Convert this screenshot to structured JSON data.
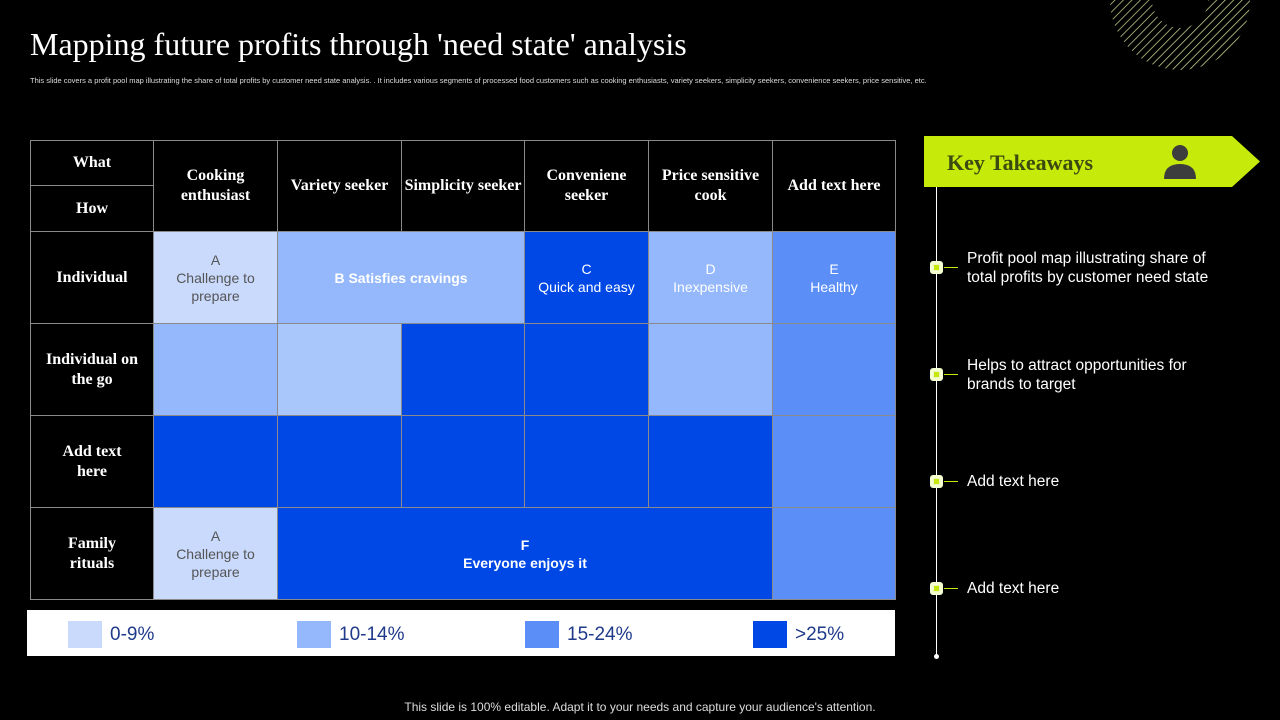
{
  "title": "Mapping future profits through 'need state' analysis",
  "subtitle": "This slide covers a profit pool map illustrating the share of total profits by customer need state analysis. . It includes various segments of processed food customers such as cooking enthusiasts, variety seekers, simplicity seekers, convenience seekers, price sensitive, etc.",
  "table": {
    "corner_what": "What",
    "corner_how": "How",
    "columns": [
      "Cooking enthusiast",
      "Variety seeker",
      "Simplicity seeker",
      "Conveniene seeker",
      "Price sensitive cook",
      "Add text here"
    ],
    "rows": [
      "Individual",
      "Individual on the go",
      "Add text here",
      "Family rituals"
    ],
    "cells": {
      "a1": {
        "letter": "A",
        "text": "Challenge to prepare"
      },
      "b": {
        "text": "B Satisfies cravings"
      },
      "c": {
        "letter": "C",
        "text": "Quick and easy"
      },
      "d": {
        "letter": "D",
        "text": "Inexpensive"
      },
      "e": {
        "letter": "E",
        "text": "Healthy"
      },
      "a2": {
        "letter": "A",
        "text": "Challenge to prepare"
      },
      "f": {
        "letter": "F",
        "text": "Everyone enjoys it"
      }
    }
  },
  "legend": [
    {
      "label": "0-9%",
      "color": "#c9dafd"
    },
    {
      "label": "10-14%",
      "color": "#94b8fb"
    },
    {
      "label": "15-24%",
      "color": "#5b8ff7"
    },
    {
      "label": ">25%",
      "color": "#0048e6"
    }
  ],
  "takeaways": {
    "title": "Key Takeaways",
    "items": [
      "Profit pool map illustrating share of total profits by customer need state",
      "Helps to attract opportunities for brands to target",
      "Add text here",
      "Add text here"
    ]
  },
  "footer": "This slide is 100% editable. Adapt it to your needs and capture your audience's attention."
}
